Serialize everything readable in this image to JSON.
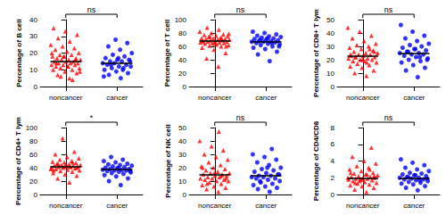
{
  "chart_data": [
    {
      "type": "scatter",
      "y_label": "Percentage of B cell",
      "ylim": [
        0,
        40
      ],
      "yticks": [
        0,
        10,
        20,
        30,
        40
      ],
      "significance": "ns",
      "groups": [
        {
          "name": "noncancer",
          "color": "#ff0000",
          "marker": "triangle",
          "mean": 15,
          "values": [
            5,
            7,
            8,
            9,
            10,
            10,
            11,
            11,
            12,
            12,
            13,
            13,
            13,
            14,
            14,
            14,
            15,
            15,
            15,
            16,
            16,
            16,
            17,
            17,
            18,
            18,
            19,
            19,
            20,
            21,
            22,
            23,
            24,
            25,
            27,
            29,
            31,
            33,
            35,
            4,
            6,
            9,
            12,
            14,
            16,
            18,
            20
          ]
        },
        {
          "name": "cancer",
          "color": "#0000ff",
          "marker": "circle",
          "mean": 14,
          "values": [
            5,
            7,
            8,
            9,
            10,
            11,
            11,
            12,
            12,
            13,
            13,
            14,
            14,
            15,
            15,
            16,
            16,
            17,
            18,
            19,
            20,
            22,
            24,
            26,
            28,
            6,
            10,
            13,
            15,
            17
          ]
        }
      ]
    },
    {
      "type": "scatter",
      "y_label": "Percentage of T cell",
      "ylim": [
        0,
        100
      ],
      "yticks": [
        0,
        20,
        40,
        60,
        80,
        100
      ],
      "significance": "ns",
      "groups": [
        {
          "name": "noncancer",
          "color": "#ff0000",
          "marker": "triangle",
          "mean": 68,
          "values": [
            30,
            42,
            50,
            55,
            58,
            60,
            61,
            62,
            63,
            64,
            65,
            65,
            66,
            66,
            67,
            67,
            68,
            68,
            69,
            69,
            70,
            70,
            71,
            71,
            72,
            72,
            73,
            74,
            75,
            76,
            77,
            78,
            80,
            82,
            85,
            88,
            60,
            64,
            68,
            72,
            75,
            79
          ]
        },
        {
          "name": "cancer",
          "color": "#0000ff",
          "marker": "circle",
          "mean": 67,
          "values": [
            38,
            48,
            52,
            56,
            58,
            60,
            62,
            63,
            64,
            65,
            66,
            67,
            67,
            68,
            68,
            69,
            70,
            71,
            72,
            73,
            74,
            75,
            76,
            78,
            80,
            82,
            65,
            70,
            60,
            72
          ]
        }
      ]
    },
    {
      "type": "scatter",
      "y_label": "Percentage of CD8+ T lym",
      "ylim": [
        0,
        50
      ],
      "yticks": [
        0,
        10,
        20,
        30,
        40,
        50
      ],
      "significance": "ns",
      "groups": [
        {
          "name": "noncancer",
          "color": "#ff0000",
          "marker": "triangle",
          "mean": 23,
          "values": [
            8,
            10,
            12,
            14,
            15,
            16,
            17,
            18,
            19,
            19,
            20,
            20,
            21,
            21,
            22,
            22,
            23,
            23,
            24,
            24,
            25,
            25,
            26,
            27,
            28,
            29,
            30,
            31,
            32,
            34,
            36,
            38,
            41,
            44,
            18,
            22,
            26,
            20,
            24,
            28
          ]
        },
        {
          "name": "cancer",
          "color": "#0000ff",
          "marker": "circle",
          "mean": 25,
          "values": [
            7,
            12,
            14,
            16,
            18,
            19,
            20,
            21,
            22,
            23,
            24,
            24,
            25,
            25,
            26,
            27,
            28,
            29,
            30,
            31,
            32,
            34,
            36,
            38,
            41,
            46,
            22,
            26,
            20,
            28
          ]
        }
      ]
    },
    {
      "type": "scatter",
      "y_label": "Percentage of CD4+ T lym",
      "ylim": [
        0,
        100
      ],
      "yticks": [
        0,
        20,
        40,
        60,
        80,
        100
      ],
      "significance": "*",
      "groups": [
        {
          "name": "noncancer",
          "color": "#ff0000",
          "marker": "triangle",
          "mean": 42,
          "values": [
            18,
            24,
            28,
            30,
            32,
            34,
            35,
            36,
            37,
            38,
            39,
            40,
            40,
            41,
            41,
            42,
            42,
            43,
            43,
            44,
            44,
            45,
            46,
            47,
            48,
            49,
            50,
            52,
            54,
            56,
            60,
            64,
            84,
            38,
            42,
            46,
            40,
            44,
            36,
            48
          ]
        },
        {
          "name": "cancer",
          "color": "#0000ff",
          "marker": "circle",
          "mean": 38,
          "values": [
            14,
            20,
            24,
            27,
            29,
            31,
            32,
            33,
            34,
            35,
            36,
            36,
            37,
            37,
            38,
            38,
            39,
            40,
            41,
            42,
            43,
            44,
            45,
            46,
            48,
            50,
            52,
            56,
            35,
            40
          ]
        }
      ]
    },
    {
      "type": "scatter",
      "y_label": "Percentage of NK cell",
      "ylim": [
        0,
        50
      ],
      "yticks": [
        0,
        10,
        20,
        30,
        40,
        50
      ],
      "significance": "ns",
      "groups": [
        {
          "name": "noncancer",
          "color": "#ff0000",
          "marker": "triangle",
          "mean": 15,
          "values": [
            2,
            4,
            5,
            6,
            7,
            8,
            9,
            10,
            10,
            11,
            11,
            12,
            12,
            13,
            13,
            14,
            14,
            15,
            15,
            16,
            16,
            17,
            18,
            19,
            20,
            21,
            22,
            24,
            26,
            28,
            30,
            33,
            36,
            40,
            47,
            8,
            12,
            16,
            20,
            14
          ]
        },
        {
          "name": "cancer",
          "color": "#0000ff",
          "marker": "circle",
          "mean": 14,
          "values": [
            2,
            4,
            5,
            6,
            7,
            8,
            9,
            10,
            11,
            12,
            12,
            13,
            13,
            14,
            14,
            15,
            16,
            17,
            18,
            19,
            20,
            22,
            24,
            26,
            28,
            30,
            34,
            10,
            15,
            20
          ]
        }
      ]
    },
    {
      "type": "scatter",
      "y_label": "Percentage of CD4/CD8",
      "ylim": [
        0,
        8
      ],
      "yticks": [
        0,
        2,
        4,
        6,
        8
      ],
      "significance": "ns",
      "groups": [
        {
          "name": "noncancer",
          "color": "#ff0000",
          "marker": "triangle",
          "mean": 2,
          "values": [
            0.3,
            0.6,
            0.8,
            1,
            1.1,
            1.2,
            1.3,
            1.4,
            1.5,
            1.6,
            1.7,
            1.8,
            1.8,
            1.9,
            1.9,
            2,
            2,
            2.1,
            2.1,
            2.2,
            2.3,
            2.4,
            2.5,
            2.6,
            2.8,
            3,
            3.2,
            3.4,
            3.7,
            4,
            4.5,
            5.6,
            1.6,
            2,
            2.4,
            1.4,
            2.2,
            1.8,
            2.6,
            3
          ]
        },
        {
          "name": "cancer",
          "color": "#0000ff",
          "marker": "circle",
          "mean": 1.9,
          "values": [
            0.5,
            0.8,
            1,
            1.2,
            1.3,
            1.4,
            1.5,
            1.6,
            1.7,
            1.8,
            1.8,
            1.9,
            2,
            2,
            2.1,
            2.2,
            2.3,
            2.4,
            2.5,
            2.6,
            2.8,
            3,
            3.2,
            3.5,
            3.8,
            4.2,
            1.7,
            2.1,
            1.9,
            2.3
          ]
        }
      ]
    }
  ]
}
